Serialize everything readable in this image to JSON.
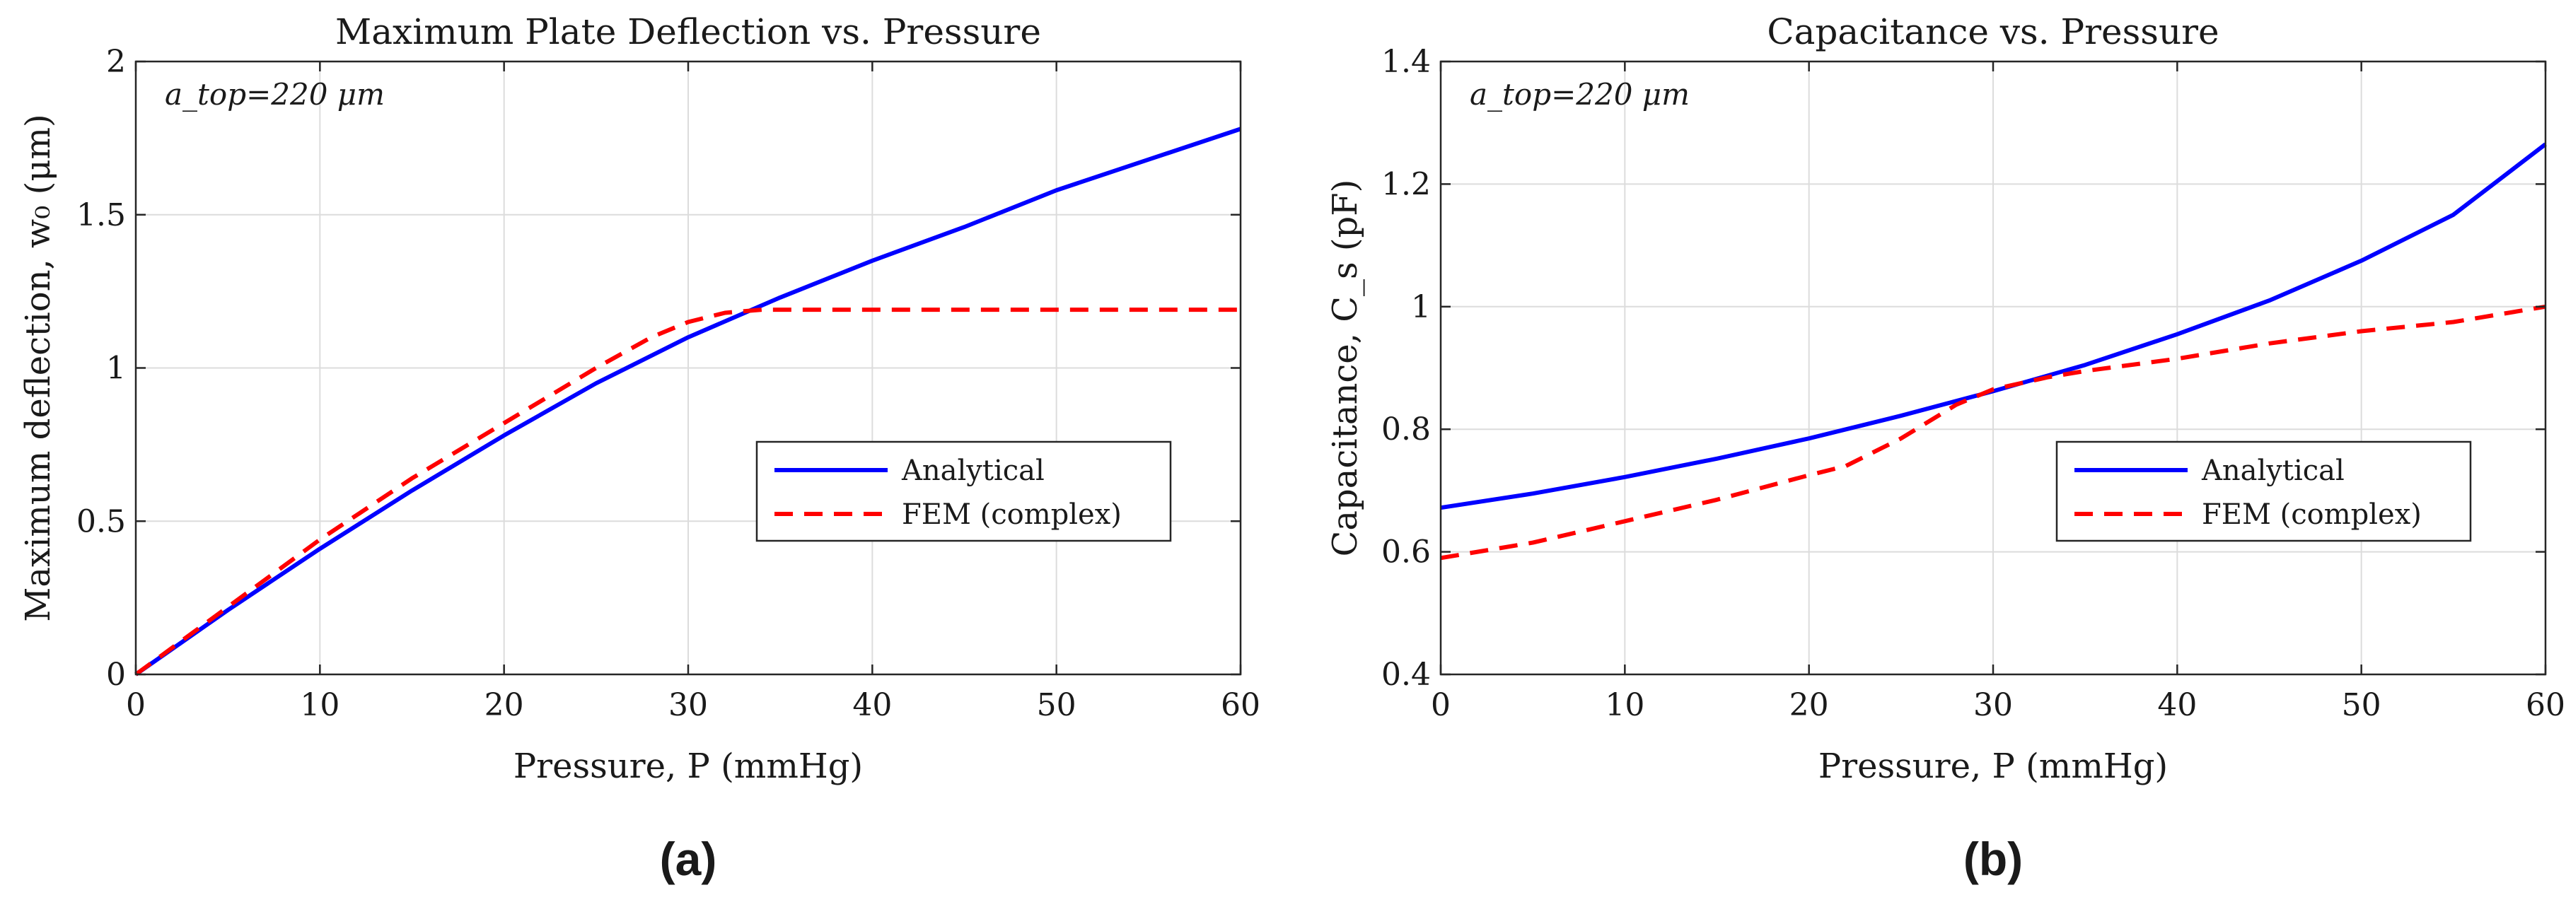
{
  "chart_data": [
    {
      "type": "line",
      "panel_label": "(a)",
      "title": "Maximum Plate Deflection vs. Pressure",
      "xlabel": "Pressure, P (mmHg)",
      "ylabel": "Maximum deflection, w₀ (μm)",
      "annotation": "a_top=220 μm",
      "xlim": [
        0,
        60
      ],
      "ylim": [
        0,
        2
      ],
      "xticks": [
        0,
        10,
        20,
        30,
        40,
        50,
        60
      ],
      "yticks": [
        0,
        0.5,
        1,
        1.5,
        2
      ],
      "ytick_labels": [
        "0",
        "0.5",
        "1",
        "1.5",
        "2"
      ],
      "grid": true,
      "legend_position": "center-right",
      "series": [
        {
          "name": "Analytical",
          "color": "#0000ff",
          "style": "solid",
          "x": [
            0,
            5,
            10,
            15,
            20,
            25,
            30,
            35,
            40,
            45,
            50,
            55,
            60
          ],
          "y": [
            0,
            0.21,
            0.41,
            0.6,
            0.78,
            0.95,
            1.1,
            1.23,
            1.35,
            1.46,
            1.58,
            1.68,
            1.78
          ]
        },
        {
          "name": "FEM (complex)",
          "color": "#ff0000",
          "style": "dashed",
          "x": [
            0,
            5,
            10,
            15,
            20,
            25,
            28,
            30,
            32,
            34,
            40,
            50,
            60
          ],
          "y": [
            0,
            0.22,
            0.44,
            0.64,
            0.82,
            1.0,
            1.1,
            1.15,
            1.18,
            1.19,
            1.19,
            1.19,
            1.19
          ]
        }
      ]
    },
    {
      "type": "line",
      "panel_label": "(b)",
      "title": "Capacitance vs. Pressure",
      "xlabel": "Pressure, P (mmHg)",
      "ylabel": "Capacitance, C_s (pF)",
      "annotation": "a_top=220 μm",
      "xlim": [
        0,
        60
      ],
      "ylim": [
        0.4,
        1.4
      ],
      "xticks": [
        0,
        10,
        20,
        30,
        40,
        50,
        60
      ],
      "yticks": [
        0.4,
        0.6,
        0.8,
        1,
        1.2,
        1.4
      ],
      "ytick_labels": [
        "0.4",
        "0.6",
        "0.8",
        "1",
        "1.2",
        "1.4"
      ],
      "grid": true,
      "legend_position": "center-right",
      "series": [
        {
          "name": "Analytical",
          "color": "#0000ff",
          "style": "solid",
          "x": [
            0,
            5,
            10,
            15,
            20,
            25,
            30,
            35,
            40,
            45,
            50,
            55,
            60
          ],
          "y": [
            0.672,
            0.695,
            0.722,
            0.752,
            0.785,
            0.822,
            0.862,
            0.905,
            0.955,
            1.01,
            1.075,
            1.15,
            1.265
          ]
        },
        {
          "name": "FEM (complex)",
          "color": "#ff0000",
          "style": "dashed",
          "x": [
            0,
            5,
            10,
            15,
            20,
            22,
            25,
            28,
            30,
            33,
            35,
            40,
            45,
            50,
            55,
            60
          ],
          "y": [
            0.59,
            0.615,
            0.65,
            0.685,
            0.725,
            0.74,
            0.785,
            0.84,
            0.865,
            0.885,
            0.895,
            0.915,
            0.94,
            0.96,
            0.975,
            1.0
          ]
        }
      ]
    }
  ]
}
